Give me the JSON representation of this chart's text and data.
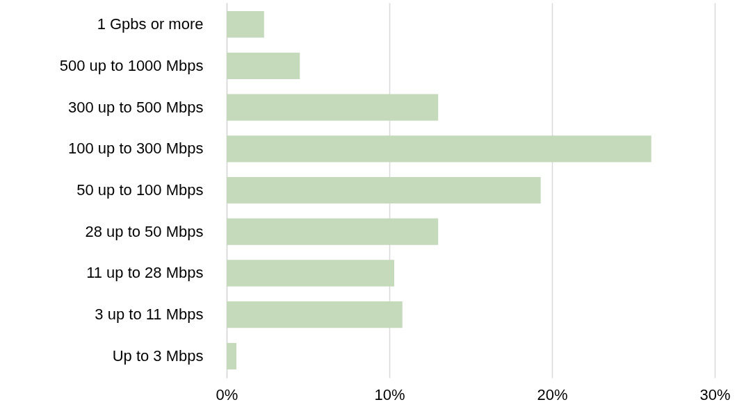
{
  "chart_data": {
    "type": "bar",
    "orientation": "horizontal",
    "categories": [
      "1 Gpbs or more",
      "500 up to 1000 Mbps",
      "300 up to 500 Mbps",
      "100 up to 300 Mbps",
      "50 up to 100 Mbps",
      "28 up to 50 Mbps",
      "11 up to 28 Mbps",
      "3 up to 11 Mbps",
      "Up to 3 Mbps"
    ],
    "values": [
      2.3,
      4.5,
      13.0,
      26.1,
      19.3,
      13.0,
      10.3,
      10.8,
      0.6
    ],
    "color": "#c5d9bb",
    "xlim": [
      0,
      30
    ],
    "xticks": [
      {
        "value": 0,
        "label": "0%"
      },
      {
        "value": 10,
        "label": "10%"
      },
      {
        "value": 20,
        "label": "20%"
      },
      {
        "value": 30,
        "label": "30%"
      }
    ],
    "grid": "x"
  }
}
